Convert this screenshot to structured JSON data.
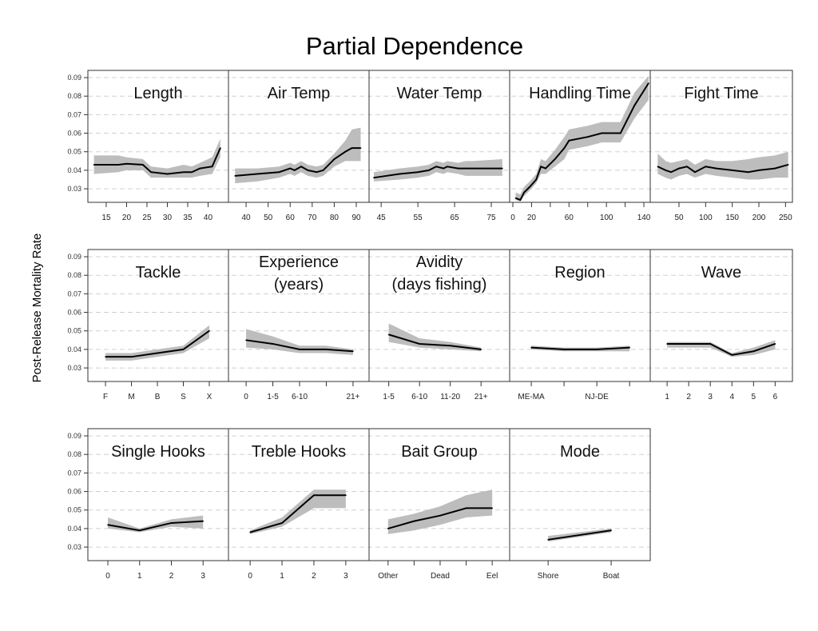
{
  "chart_data": {
    "type": "line",
    "title": "Partial Dependence",
    "ylabel": "Post-Release Mortality Rate",
    "ylim": [
      0.0227,
      0.0939
    ],
    "yticks": [
      0.03,
      0.04,
      0.05,
      0.06,
      0.07,
      0.08,
      0.09
    ],
    "ytick_labels": [
      "0.03",
      "0.04",
      "0.05",
      "0.06",
      "0.07",
      "0.08",
      "0.09"
    ],
    "grid": true,
    "colors": {
      "line": "#000000",
      "band": "#bdbdbd",
      "grid": "#d0d0d0"
    },
    "panels": [
      {
        "title": [
          "Length"
        ],
        "xlim": [
          10.5,
          45
        ],
        "ticks": [
          15,
          20,
          25,
          30,
          35,
          40
        ],
        "tick_labels": [
          "15",
          "20",
          "25",
          "30",
          "35",
          "40"
        ],
        "x": [
          12,
          18,
          20,
          24,
          26,
          30,
          34,
          36,
          38,
          41,
          43
        ],
        "y": [
          0.043,
          0.043,
          0.0435,
          0.043,
          0.039,
          0.038,
          0.039,
          0.039,
          0.041,
          0.042,
          0.052
        ],
        "lower": [
          0.038,
          0.039,
          0.04,
          0.04,
          0.036,
          0.036,
          0.036,
          0.036,
          0.037,
          0.038,
          0.047
        ],
        "upper": [
          0.048,
          0.048,
          0.047,
          0.046,
          0.042,
          0.041,
          0.043,
          0.042,
          0.044,
          0.047,
          0.057
        ]
      },
      {
        "title": [
          "Air Temp"
        ],
        "xlim": [
          32,
          95.8
        ],
        "ticks": [
          40,
          50,
          60,
          70,
          80,
          90
        ],
        "tick_labels": [
          "40",
          "50",
          "60",
          "70",
          "80",
          "90"
        ],
        "x": [
          35,
          45,
          55,
          60,
          62,
          65,
          68,
          72,
          75,
          80,
          85,
          88,
          92
        ],
        "y": [
          0.037,
          0.038,
          0.039,
          0.041,
          0.04,
          0.042,
          0.04,
          0.039,
          0.04,
          0.046,
          0.05,
          0.052,
          0.052
        ],
        "lower": [
          0.033,
          0.034,
          0.036,
          0.038,
          0.037,
          0.039,
          0.037,
          0.036,
          0.037,
          0.042,
          0.045,
          0.045,
          0.045
        ],
        "upper": [
          0.041,
          0.041,
          0.042,
          0.044,
          0.043,
          0.045,
          0.043,
          0.042,
          0.043,
          0.049,
          0.056,
          0.062,
          0.063
        ]
      },
      {
        "title": [
          "Water Temp"
        ],
        "xlim": [
          41.7,
          80
        ],
        "ticks": [
          45,
          55,
          65,
          75
        ],
        "tick_labels": [
          "45",
          "55",
          "65",
          "75"
        ],
        "x": [
          43,
          50,
          55,
          58,
          60,
          62,
          63,
          66,
          68,
          70,
          78
        ],
        "y": [
          0.036,
          0.038,
          0.039,
          0.04,
          0.042,
          0.041,
          0.042,
          0.041,
          0.041,
          0.041,
          0.041
        ],
        "lower": [
          0.034,
          0.035,
          0.036,
          0.037,
          0.039,
          0.038,
          0.039,
          0.038,
          0.037,
          0.037,
          0.037
        ],
        "upper": [
          0.039,
          0.041,
          0.042,
          0.043,
          0.045,
          0.044,
          0.045,
          0.044,
          0.045,
          0.045,
          0.046
        ]
      },
      {
        "title": [
          "Handling Time"
        ],
        "xlim": [
          -3.4,
          146.8
        ],
        "ticks": [
          0,
          20,
          40,
          60,
          80,
          100,
          120,
          140
        ],
        "tick_labels": [
          "0",
          "20",
          "",
          "60",
          "",
          "100",
          "",
          "140"
        ],
        "x": [
          3,
          8,
          12,
          18,
          25,
          30,
          35,
          45,
          55,
          60,
          80,
          95,
          115,
          130,
          145
        ],
        "y": [
          0.025,
          0.024,
          0.028,
          0.031,
          0.035,
          0.042,
          0.041,
          0.046,
          0.052,
          0.056,
          0.058,
          0.06,
          0.06,
          0.075,
          0.087
        ],
        "lower": [
          0.024,
          0.023,
          0.026,
          0.029,
          0.033,
          0.038,
          0.038,
          0.042,
          0.046,
          0.051,
          0.053,
          0.055,
          0.055,
          0.068,
          0.078
        ],
        "upper": [
          0.028,
          0.027,
          0.031,
          0.034,
          0.038,
          0.046,
          0.045,
          0.051,
          0.058,
          0.062,
          0.064,
          0.066,
          0.066,
          0.082,
          0.091
        ]
      },
      {
        "title": [
          "Fight Time"
        ],
        "xlim": [
          -4,
          263
        ],
        "ticks": [
          50,
          100,
          150,
          200,
          250
        ],
        "tick_labels": [
          "50",
          "100",
          "150",
          "200",
          "250"
        ],
        "x": [
          10,
          25,
          35,
          50,
          65,
          80,
          100,
          120,
          150,
          180,
          200,
          230,
          255
        ],
        "y": [
          0.042,
          0.04,
          0.039,
          0.041,
          0.042,
          0.039,
          0.042,
          0.041,
          0.04,
          0.039,
          0.04,
          0.041,
          0.043
        ],
        "lower": [
          0.038,
          0.036,
          0.035,
          0.037,
          0.038,
          0.036,
          0.038,
          0.037,
          0.036,
          0.035,
          0.035,
          0.036,
          0.036
        ],
        "upper": [
          0.049,
          0.045,
          0.044,
          0.045,
          0.046,
          0.043,
          0.046,
          0.045,
          0.045,
          0.046,
          0.047,
          0.048,
          0.05
        ]
      },
      {
        "title": [
          "Tackle"
        ],
        "xlim": [
          -0.68,
          4.74
        ],
        "ticks": [
          0,
          1,
          2,
          3,
          4
        ],
        "tick_labels": [
          "F",
          "M",
          "B",
          "S",
          "X"
        ],
        "x": [
          0,
          1,
          2,
          3,
          4
        ],
        "y": [
          0.036,
          0.036,
          0.038,
          0.04,
          0.05
        ],
        "lower": [
          0.034,
          0.034,
          0.036,
          0.038,
          0.046
        ],
        "upper": [
          0.038,
          0.038,
          0.04,
          0.042,
          0.053
        ]
      },
      {
        "title": [
          "Experience",
          "(years)"
        ],
        "xlim": [
          -0.66,
          4.6
        ],
        "ticks": [
          0,
          1,
          2,
          3,
          4
        ],
        "tick_labels": [
          "0",
          "1-5",
          "6-10",
          "",
          "21+"
        ],
        "x": [
          0,
          1,
          2,
          3,
          4
        ],
        "y": [
          0.045,
          0.043,
          0.04,
          0.04,
          0.039
        ],
        "lower": [
          0.041,
          0.04,
          0.038,
          0.038,
          0.037
        ],
        "upper": [
          0.051,
          0.047,
          0.042,
          0.042,
          0.04
        ]
      },
      {
        "title": [
          "Avidity",
          "(days fishing)"
        ],
        "xlim": [
          -0.64,
          3.93
        ],
        "ticks": [
          0,
          1,
          2,
          3
        ],
        "tick_labels": [
          "1-5",
          "6-10",
          "11-20",
          "21+"
        ],
        "x": [
          0,
          1,
          2,
          3
        ],
        "y": [
          0.048,
          0.043,
          0.042,
          0.04
        ],
        "lower": [
          0.044,
          0.041,
          0.04,
          0.039
        ],
        "upper": [
          0.054,
          0.046,
          0.044,
          0.041
        ]
      },
      {
        "title": [
          "Region"
        ],
        "xlim": [
          -0.66,
          3.63
        ],
        "ticks": [
          0,
          1,
          2,
          3
        ],
        "tick_labels": [
          "ME-MA",
          "",
          "NJ-DE",
          ""
        ],
        "x": [
          0,
          1,
          2,
          3
        ],
        "y": [
          0.041,
          0.04,
          0.04,
          0.041
        ],
        "lower": [
          0.04,
          0.039,
          0.039,
          0.039
        ],
        "upper": [
          0.042,
          0.041,
          0.041,
          0.042
        ]
      },
      {
        "title": [
          "Wave"
        ],
        "xlim": [
          0.22,
          6.8
        ],
        "ticks": [
          1,
          2,
          3,
          4,
          5,
          6
        ],
        "tick_labels": [
          "1",
          "2",
          "3",
          "4",
          "5",
          "6"
        ],
        "x": [
          1,
          2,
          3,
          4,
          5,
          6
        ],
        "y": [
          0.043,
          0.043,
          0.043,
          0.037,
          0.039,
          0.043
        ],
        "lower": [
          0.041,
          0.041,
          0.041,
          0.036,
          0.037,
          0.04
        ],
        "upper": [
          0.044,
          0.044,
          0.044,
          0.038,
          0.041,
          0.045
        ]
      },
      {
        "title": [
          "Single Hooks"
        ],
        "xlim": [
          -0.63,
          3.8
        ],
        "ticks": [
          0,
          1,
          2,
          3
        ],
        "tick_labels": [
          "0",
          "1",
          "2",
          "3"
        ],
        "x": [
          0,
          1,
          2,
          3
        ],
        "y": [
          0.042,
          0.039,
          0.043,
          0.044
        ],
        "lower": [
          0.04,
          0.038,
          0.041,
          0.04
        ],
        "upper": [
          0.046,
          0.04,
          0.045,
          0.047
        ]
      },
      {
        "title": [
          "Treble Hooks"
        ],
        "xlim": [
          -0.68,
          3.73
        ],
        "ticks": [
          0,
          1,
          2,
          3
        ],
        "tick_labels": [
          "0",
          "1",
          "2",
          "3"
        ],
        "x": [
          0,
          1,
          2,
          3
        ],
        "y": [
          0.038,
          0.043,
          0.058,
          0.058
        ],
        "lower": [
          0.037,
          0.041,
          0.051,
          0.051
        ],
        "upper": [
          0.039,
          0.046,
          0.061,
          0.061
        ]
      },
      {
        "title": [
          "Bait Group"
        ],
        "xlim": [
          -0.73,
          4.67
        ],
        "ticks": [
          0,
          1,
          2,
          3,
          4
        ],
        "tick_labels": [
          "Other",
          "",
          "Dead",
          "",
          "Eel"
        ],
        "x": [
          0,
          1,
          2,
          3,
          4
        ],
        "y": [
          0.04,
          0.044,
          0.047,
          0.051,
          0.051
        ],
        "lower": [
          0.037,
          0.039,
          0.042,
          0.046,
          0.047
        ],
        "upper": [
          0.045,
          0.048,
          0.052,
          0.058,
          0.061
        ]
      },
      {
        "title": [
          "Mode"
        ],
        "xlim": [
          -0.61,
          1.62
        ],
        "ticks": [
          0,
          1
        ],
        "tick_labels": [
          "Shore",
          "Boat"
        ],
        "x": [
          0,
          1
        ],
        "y": [
          0.034,
          0.039
        ],
        "lower": [
          0.033,
          0.038
        ],
        "upper": [
          0.036,
          0.04
        ]
      }
    ]
  }
}
